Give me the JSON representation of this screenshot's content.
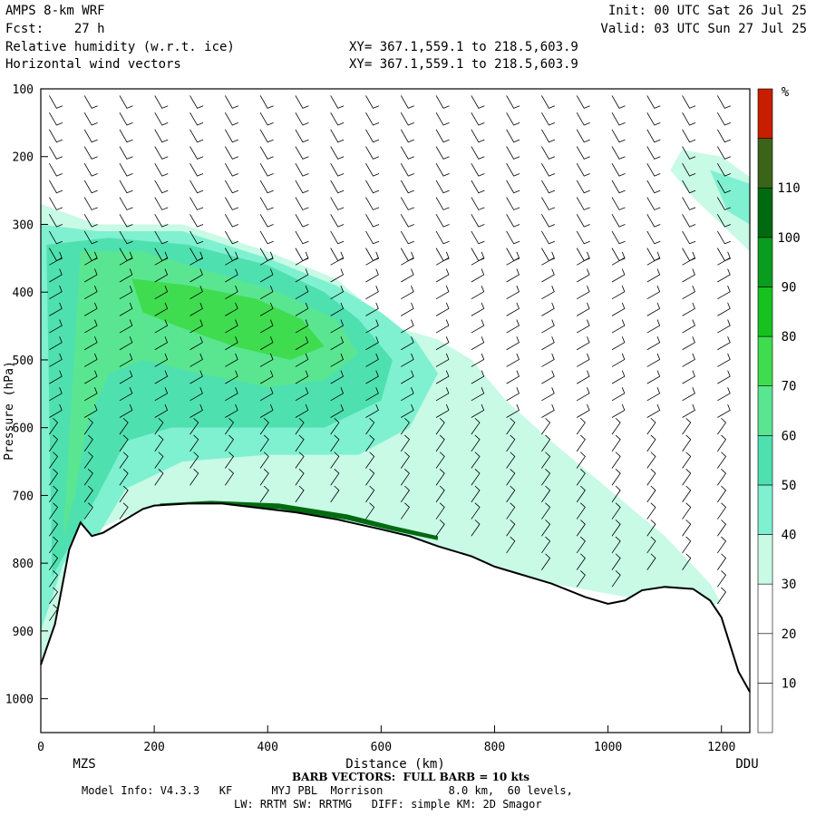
{
  "header": {
    "model": "AMPS 8-km WRF",
    "forecast": "Fcst:    27 h",
    "field1": "Relative humidity (w.r.t. ice)",
    "field2": "Horizontal wind vectors",
    "init": "Init: 00 UTC Sat 26 Jul 25",
    "valid": "Valid: 03 UTC Sun 27 Jul 25",
    "xy1": "XY= 367.1,559.1 to 218.5,603.9",
    "xy2": "XY= 367.1,559.1 to 218.5,603.9"
  },
  "footer": {
    "barb_note": "BARB VECTORS:  FULL BARB = 10 kts",
    "model_info": "Model Info: V4.3.3   KF      MYJ PBL  Morrison          8.0 km,  60 levels,",
    "physics": "LW: RRTM SW: RRTMG   DIFF: simple KM: 2D Smagor"
  },
  "colors": {
    "rh_bins": [
      "#ffffff",
      "#ffffff",
      "#ffffff",
      "#c8fae6",
      "#7ff0d0",
      "#4fe0b0",
      "#5ae690",
      "#40dc50",
      "#18c21e",
      "#0a9c1e",
      "#006a10",
      "#3c6418",
      "#c81e00"
    ],
    "terrain_edge": "#000000"
  },
  "chart_data": {
    "type": "heatmap",
    "title": "Relative humidity (w.r.t. ice)",
    "xlabel": "Distance (km)",
    "ylabel": "Pressure (hPa)",
    "xlim": [
      0,
      1250
    ],
    "ylim": [
      1050,
      100
    ],
    "x_ticks": [
      0,
      200,
      400,
      600,
      800,
      1000,
      1200
    ],
    "y_ticks": [
      100,
      200,
      300,
      400,
      500,
      600,
      700,
      800,
      900,
      1000
    ],
    "start_label": "MZS",
    "end_label": "DDU",
    "colorbar": {
      "unit": "%",
      "levels": [
        110,
        100,
        90,
        80,
        70,
        60,
        50,
        40,
        30,
        20,
        10
      ]
    },
    "terrain_surface_hPa": [
      [
        0,
        950
      ],
      [
        25,
        890
      ],
      [
        50,
        780
      ],
      [
        70,
        740
      ],
      [
        90,
        760
      ],
      [
        110,
        755
      ],
      [
        140,
        740
      ],
      [
        180,
        720
      ],
      [
        200,
        715
      ],
      [
        260,
        712
      ],
      [
        320,
        712
      ],
      [
        380,
        718
      ],
      [
        450,
        725
      ],
      [
        520,
        735
      ],
      [
        600,
        750
      ],
      [
        650,
        760
      ],
      [
        700,
        775
      ],
      [
        760,
        790
      ],
      [
        800,
        805
      ],
      [
        840,
        815
      ],
      [
        900,
        830
      ],
      [
        960,
        850
      ],
      [
        1000,
        860
      ],
      [
        1030,
        855
      ],
      [
        1060,
        840
      ],
      [
        1100,
        835
      ],
      [
        1150,
        838
      ],
      [
        1180,
        855
      ],
      [
        1200,
        880
      ],
      [
        1230,
        960
      ],
      [
        1250,
        990
      ]
    ]
  }
}
